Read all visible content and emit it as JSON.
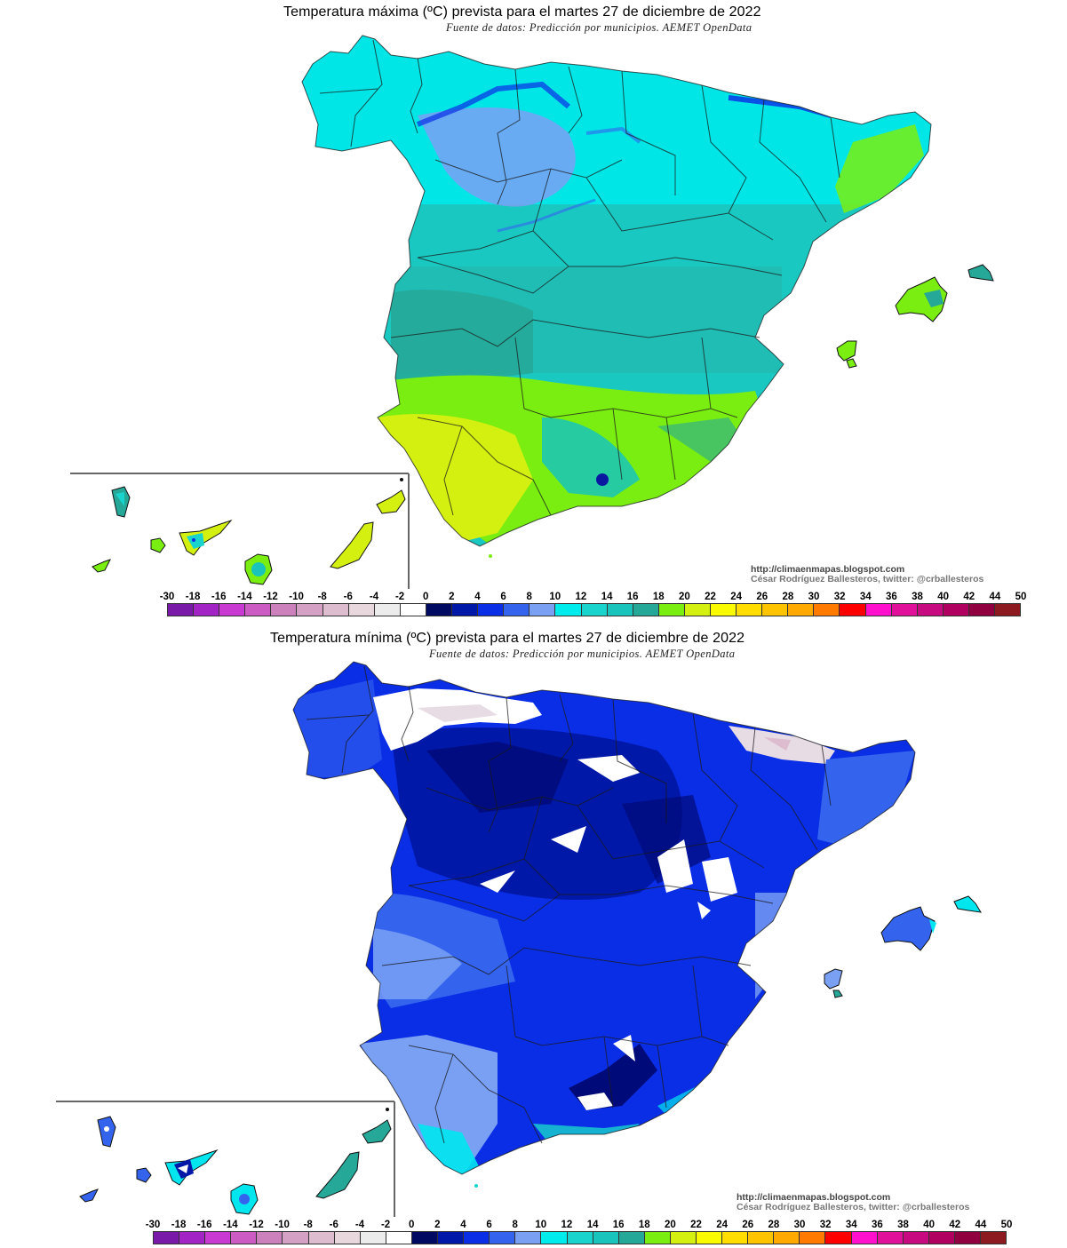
{
  "maps": [
    {
      "id": "max",
      "title": "Temperatura máxima (ºC) prevista para el martes 27 de diciembre de 2022",
      "source": "Fuente de datos: Predicción por municipios. AEMET OpenData",
      "credit_url": "http://climaenmapas.blogspot.com",
      "credit_author": "César Rodríguez Ballesteros, twitter: @crballesteros",
      "dominant_colors": {
        "north": "#00e6e6",
        "center": "#19c8c0",
        "south": "#2aa89e",
        "andalucia_coast": "#ccf000",
        "mountains": "#7799ee",
        "peaks": "#0a1aa0",
        "catalonia": "#77ee22"
      }
    },
    {
      "id": "min",
      "title": "Temperatura mínima (ºC) prevista para el martes 27 de diciembre de 2022",
      "source": "Fuente de datos: Predicción por municipios. AEMET OpenData",
      "credit_url": "http://climaenmapas.blogspot.com",
      "credit_author": "César Rodríguez Ballesteros, twitter: @crballesteros",
      "dominant_colors": {
        "meseta": "#0018b0",
        "coldest": "#000a78",
        "west": "#3a66ee",
        "southwest": "#7799f0",
        "coast": "#00e6ee",
        "snow_peaks": "#ffffff",
        "pyrenees": "#e6d8e0"
      }
    }
  ],
  "colorbar": {
    "labels": [
      "-30",
      "-18",
      "-16",
      "-14",
      "-12",
      "-10",
      "-8",
      "-6",
      "-4",
      "-2",
      "0",
      "2",
      "4",
      "6",
      "8",
      "10",
      "12",
      "14",
      "16",
      "18",
      "20",
      "22",
      "24",
      "26",
      "28",
      "30",
      "32",
      "34",
      "36",
      "38",
      "40",
      "42",
      "44",
      "50"
    ],
    "colors": [
      "#7a1aa8",
      "#a324c4",
      "#c93ad2",
      "#cc5cc4",
      "#cc80bc",
      "#d4a0c4",
      "#dcbcce",
      "#e8d8de",
      "#ececec",
      "#ffffff",
      "#000a60",
      "#0018a8",
      "#0a2ee6",
      "#3464ee",
      "#7aa0f4",
      "#00ecec",
      "#18d4cc",
      "#18c4bc",
      "#26a898",
      "#7aee10",
      "#d4f010",
      "#fafa00",
      "#ffdd00",
      "#ffc400",
      "#ffaa00",
      "#ff7a00",
      "#ff0000",
      "#ff10cc",
      "#e0109a",
      "#c80a80",
      "#b00060",
      "#900040",
      "#8c1a20"
    ]
  },
  "chart_data": [
    {
      "type": "heatmap",
      "title": "Temperatura máxima (ºC) prevista para el martes 27 de diciembre de 2022",
      "subtitle": "Fuente de datos: Predicción por municipios. AEMET OpenData",
      "region": "Spain (Peninsula, Balearic Islands, Canary Islands inset)",
      "legend_bins": [
        "-30",
        "-18",
        "-16",
        "-14",
        "-12",
        "-10",
        "-8",
        "-6",
        "-4",
        "-2",
        "0",
        "2",
        "4",
        "6",
        "8",
        "10",
        "12",
        "14",
        "16",
        "18",
        "20",
        "22",
        "24",
        "26",
        "28",
        "30",
        "32",
        "34",
        "36",
        "38",
        "40",
        "42",
        "44",
        "50"
      ],
      "regional_ranges_c": {
        "Galicia/Cantabrian coast": [
          10,
          14
        ],
        "Castilla y León plateau": [
          8,
          12
        ],
        "Cantabrian & Pyrenees mountains": [
          0,
          6
        ],
        "Central Spain (Madrid/Castilla-La Mancha)": [
          12,
          16
        ],
        "Extremadura": [
          14,
          18
        ],
        "Andalucía (Guadalquivir valley)": [
          18,
          22
        ],
        "Sierra Nevada peaks": [
          2,
          6
        ],
        "Catalonia coast": [
          16,
          20
        ],
        "Valencia/Murcia coast": [
          16,
          20
        ],
        "Balearic Islands": [
          14,
          20
        ],
        "Canary Islands (eastern)": [
          20,
          22
        ],
        "Canary Islands (western summits)": [
          8,
          12
        ]
      }
    },
    {
      "type": "heatmap",
      "title": "Temperatura mínima (ºC) prevista para el martes 27 de diciembre de 2022",
      "subtitle": "Fuente de datos: Predicción por municipios. AEMET OpenData",
      "region": "Spain (Peninsula, Balearic Islands, Canary Islands inset)",
      "legend_bins": [
        "-30",
        "-18",
        "-16",
        "-14",
        "-12",
        "-10",
        "-8",
        "-6",
        "-4",
        "-2",
        "0",
        "2",
        "4",
        "6",
        "8",
        "10",
        "12",
        "14",
        "16",
        "18",
        "20",
        "22",
        "24",
        "26",
        "28",
        "30",
        "32",
        "34",
        "36",
        "38",
        "40",
        "42",
        "44",
        "50"
      ],
      "regional_ranges_c": {
        "Cantabrian mountains & Pyrenees": [
          -4,
          0
        ],
        "Sistema Central / Ibérico / Sierra Nevada peaks": [
          -2,
          0
        ],
        "Castilla y León plateau": [
          0,
          4
        ],
        "Galicia": [
          2,
          6
        ],
        "Central Spain": [
          2,
          6
        ],
        "Extremadura / western Andalucía": [
          6,
          10
        ],
        "Mediterranean & Andalusian coast": [
          8,
          12
        ],
        "Catalonia": [
          4,
          8
        ],
        "Balearic Islands": [
          6,
          12
        ],
        "Canary Islands (coasts)": [
          12,
          18
        ],
        "Teide summit": [
          -2,
          0
        ]
      }
    }
  ]
}
